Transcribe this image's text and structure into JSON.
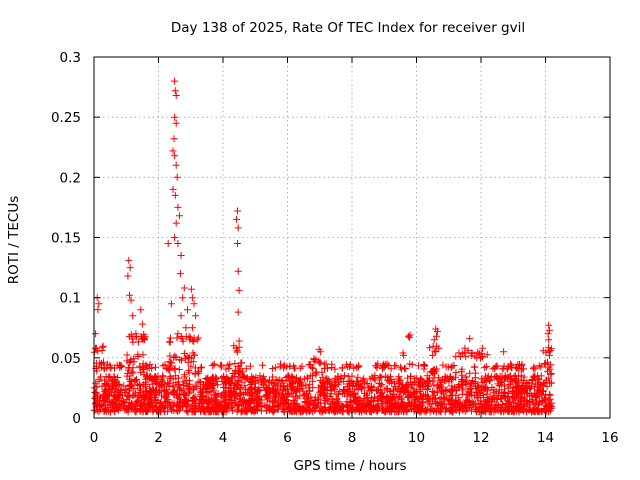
{
  "chart_data": {
    "type": "scatter",
    "title": "Day 138 of 2025, Rate Of TEC Index for receiver gvil",
    "xlabel": "GPS time / hours",
    "ylabel": "ROTI / TECUs",
    "xlim": [
      0,
      16
    ],
    "ylim": [
      0,
      0.3
    ],
    "x_ticks": [
      0,
      2,
      4,
      6,
      8,
      10,
      12,
      14,
      16
    ],
    "x_tick_labels": [
      "0",
      "2",
      "4",
      "6",
      "8",
      "10",
      "12",
      "14",
      "16"
    ],
    "y_ticks": [
      0,
      0.05,
      0.1,
      0.15,
      0.2,
      0.25,
      0.3
    ],
    "y_tick_labels": [
      "0",
      "0.05",
      "0.1",
      "0.15",
      "0.2",
      "0.25",
      "0.3"
    ],
    "grid": true,
    "marker": "+",
    "color": "#ff0000",
    "data_time_range": [
      0,
      14.2
    ],
    "baseline": {
      "min": 0.005,
      "max": 0.045
    },
    "series": [
      {
        "name": "ROTI",
        "notable_points": [
          {
            "x": 0.1,
            "y": 0.1
          },
          {
            "x": 0.15,
            "y": 0.095
          },
          {
            "x": 0.12,
            "y": 0.09
          },
          {
            "x": 0.05,
            "y": 0.07
          },
          {
            "x": 0.08,
            "y": 0.058
          },
          {
            "x": 1.08,
            "y": 0.131
          },
          {
            "x": 1.12,
            "y": 0.125
          },
          {
            "x": 1.05,
            "y": 0.118
          },
          {
            "x": 1.1,
            "y": 0.102
          },
          {
            "x": 1.15,
            "y": 0.098
          },
          {
            "x": 1.2,
            "y": 0.085
          },
          {
            "x": 1.3,
            "y": 0.07
          },
          {
            "x": 1.45,
            "y": 0.09
          },
          {
            "x": 1.5,
            "y": 0.078
          },
          {
            "x": 1.55,
            "y": 0.065
          },
          {
            "x": 2.3,
            "y": 0.145
          },
          {
            "x": 2.5,
            "y": 0.28
          },
          {
            "x": 2.52,
            "y": 0.272
          },
          {
            "x": 2.55,
            "y": 0.268
          },
          {
            "x": 2.5,
            "y": 0.25
          },
          {
            "x": 2.55,
            "y": 0.245
          },
          {
            "x": 2.48,
            "y": 0.232
          },
          {
            "x": 2.45,
            "y": 0.222
          },
          {
            "x": 2.5,
            "y": 0.218
          },
          {
            "x": 2.55,
            "y": 0.21
          },
          {
            "x": 2.58,
            "y": 0.2
          },
          {
            "x": 2.45,
            "y": 0.19
          },
          {
            "x": 2.52,
            "y": 0.185
          },
          {
            "x": 2.6,
            "y": 0.175
          },
          {
            "x": 2.65,
            "y": 0.168
          },
          {
            "x": 2.55,
            "y": 0.162
          },
          {
            "x": 2.5,
            "y": 0.15
          },
          {
            "x": 2.6,
            "y": 0.145
          },
          {
            "x": 2.7,
            "y": 0.135
          },
          {
            "x": 2.68,
            "y": 0.12
          },
          {
            "x": 2.8,
            "y": 0.108
          },
          {
            "x": 2.75,
            "y": 0.1
          },
          {
            "x": 2.9,
            "y": 0.09
          },
          {
            "x": 2.7,
            "y": 0.085
          },
          {
            "x": 2.4,
            "y": 0.095
          },
          {
            "x": 2.85,
            "y": 0.075
          },
          {
            "x": 2.6,
            "y": 0.07
          },
          {
            "x": 3.02,
            "y": 0.107
          },
          {
            "x": 3.05,
            "y": 0.1
          },
          {
            "x": 3.1,
            "y": 0.095
          },
          {
            "x": 3.15,
            "y": 0.085
          },
          {
            "x": 3.05,
            "y": 0.075
          },
          {
            "x": 3.2,
            "y": 0.065
          },
          {
            "x": 4.45,
            "y": 0.172
          },
          {
            "x": 4.42,
            "y": 0.165
          },
          {
            "x": 4.47,
            "y": 0.158
          },
          {
            "x": 4.45,
            "y": 0.145
          },
          {
            "x": 4.47,
            "y": 0.122
          },
          {
            "x": 4.5,
            "y": 0.106
          },
          {
            "x": 4.47,
            "y": 0.088
          },
          {
            "x": 4.5,
            "y": 0.064
          },
          {
            "x": 6.98,
            "y": 0.057
          },
          {
            "x": 7.02,
            "y": 0.055
          },
          {
            "x": 9.6,
            "y": 0.052
          },
          {
            "x": 9.58,
            "y": 0.054
          },
          {
            "x": 9.75,
            "y": 0.068
          },
          {
            "x": 9.8,
            "y": 0.069
          },
          {
            "x": 9.78,
            "y": 0.067
          },
          {
            "x": 10.6,
            "y": 0.074
          },
          {
            "x": 10.65,
            "y": 0.072
          },
          {
            "x": 10.62,
            "y": 0.068
          },
          {
            "x": 10.55,
            "y": 0.065
          },
          {
            "x": 10.6,
            "y": 0.055
          },
          {
            "x": 10.5,
            "y": 0.052
          },
          {
            "x": 11.65,
            "y": 0.066
          },
          {
            "x": 11.5,
            "y": 0.058
          },
          {
            "x": 11.6,
            "y": 0.056
          },
          {
            "x": 12.05,
            "y": 0.058
          },
          {
            "x": 12.7,
            "y": 0.055
          },
          {
            "x": 14.1,
            "y": 0.077
          },
          {
            "x": 14.12,
            "y": 0.073
          },
          {
            "x": 14.08,
            "y": 0.07
          },
          {
            "x": 14.1,
            "y": 0.065
          },
          {
            "x": 14.15,
            "y": 0.056
          },
          {
            "x": 14.12,
            "y": 0.052
          }
        ],
        "elevated_bands": [
          {
            "x_start": 0.0,
            "x_end": 0.3,
            "y_max": 0.06
          },
          {
            "x_start": 1.0,
            "x_end": 1.6,
            "y_max": 0.07
          },
          {
            "x_start": 2.3,
            "y_max": 0.07,
            "x_end": 3.3
          },
          {
            "x_start": 4.3,
            "x_end": 4.6,
            "y_max": 0.06
          },
          {
            "x_start": 6.8,
            "x_end": 7.1,
            "y_max": 0.05
          },
          {
            "x_start": 10.4,
            "x_end": 10.7,
            "y_max": 0.06
          },
          {
            "x_start": 11.2,
            "x_end": 12.2,
            "y_max": 0.055
          },
          {
            "x_start": 13.9,
            "x_end": 14.2,
            "y_max": 0.06
          }
        ]
      }
    ]
  }
}
